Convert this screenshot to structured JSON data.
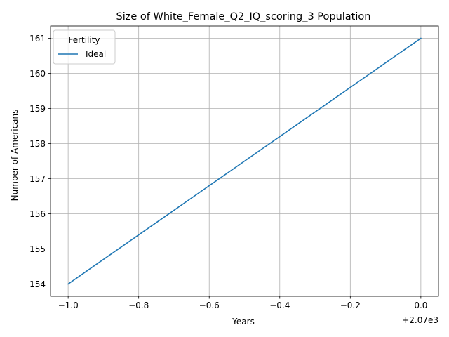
{
  "chart_data": {
    "type": "line",
    "title": "Size of White_Female_Q2_IQ_scoring_3 Population",
    "xlabel": "Years",
    "ylabel": "Number of Americans",
    "x_offset_label": "+2.07e3",
    "xlim": [
      -1.05,
      0.05
    ],
    "ylim": [
      153.65,
      161.35
    ],
    "x_ticks": [
      -1.0,
      -0.8,
      -0.6,
      -0.4,
      -0.2,
      0.0
    ],
    "x_tick_labels": [
      "−1.0",
      "−0.8",
      "−0.6",
      "−0.4",
      "−0.2",
      "0.0"
    ],
    "y_ticks": [
      154,
      155,
      156,
      157,
      158,
      159,
      160,
      161
    ],
    "y_tick_labels": [
      "154",
      "155",
      "156",
      "157",
      "158",
      "159",
      "160",
      "161"
    ],
    "grid": true,
    "legend": {
      "title": "Fertility",
      "placement": "upper-left"
    },
    "series": [
      {
        "name": "Ideal",
        "color": "#1f77b4",
        "x": [
          -1.0,
          0.0
        ],
        "y": [
          154,
          161
        ]
      }
    ]
  }
}
